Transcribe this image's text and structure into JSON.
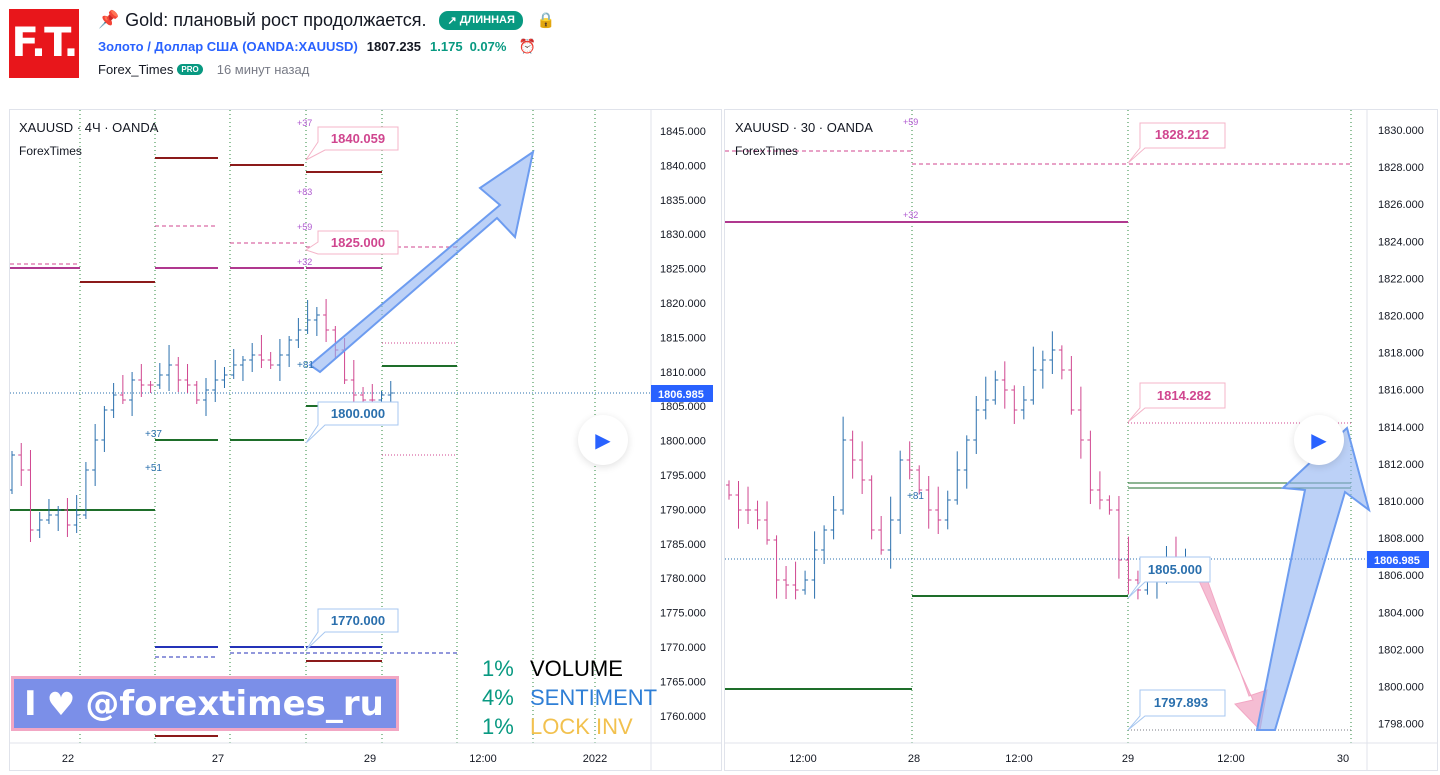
{
  "header": {
    "logo_text": "F.T.",
    "title": "Gold: плановый рост продолжается.",
    "badge": "ДЛИННАЯ",
    "symbol_link": "Золото / Доллар США (OANDA:XAUUSD)",
    "price": "1807.235",
    "change": "1.175",
    "change_pct": "0.07%",
    "author": "Forex_Times",
    "pro_badge": "PRO",
    "time_ago": "16 минут назад",
    "icons": {
      "pin": "pin-icon",
      "lock": "lock-icon",
      "alarm": "alarm-icon",
      "badge_arrow": "arrow-up-right-icon"
    }
  },
  "left_chart": {
    "symbol": "XAUUSD · 4Ч · OANDA",
    "watermark": "ForexTimes",
    "price_axis": [
      "1845.000",
      "1840.000",
      "1835.000",
      "1830.000",
      "1825.000",
      "1820.000",
      "1815.000",
      "1810.000",
      "1805.000",
      "1800.000",
      "1795.000",
      "1790.000",
      "1785.000",
      "1780.000",
      "1775.000",
      "1770.000",
      "1765.000",
      "1760.000"
    ],
    "current_price": "1806.985",
    "time_axis": [
      "22",
      "27",
      "29",
      "12:00",
      "2022"
    ],
    "callouts": [
      "1840.059",
      "1825.000",
      "1800.000",
      "1770.000"
    ],
    "markers": [
      "+37",
      "+83",
      "+59",
      "+32",
      "+81",
      "+37",
      "+51"
    ]
  },
  "right_chart": {
    "symbol": "XAUUSD · 30 · OANDA",
    "watermark": "ForexTimes",
    "price_axis": [
      "1830.000",
      "1828.000",
      "1826.000",
      "1824.000",
      "1822.000",
      "1820.000",
      "1818.000",
      "1816.000",
      "1814.000",
      "1812.000",
      "1810.000",
      "1808.000",
      "1806.000",
      "1804.000",
      "1802.000",
      "1800.000",
      "1798.000"
    ],
    "current_price": "1806.985",
    "time_axis": [
      "12:00",
      "28",
      "12:00",
      "29",
      "12:00",
      "30"
    ],
    "callouts": [
      "1828.212",
      "1814.282",
      "1805.000",
      "1797.893"
    ],
    "markers": [
      "+59",
      "+32",
      "+81"
    ]
  },
  "banner": {
    "text": "@forextimes_ru",
    "first": "I"
  },
  "stats": [
    {
      "pct": "1%",
      "label": "VOLUME",
      "color": "#000000"
    },
    {
      "pct": "4%",
      "label": "SENTIMENT",
      "color": "#2f7fd6"
    },
    {
      "pct": "1%",
      "label": "LOCK",
      "label2": "INV",
      "color": "#f2c14e"
    }
  ],
  "colors": {
    "up": "#2a6fad",
    "down": "#d0468f",
    "accent": "#2962ff",
    "green_badge": "#089981"
  }
}
